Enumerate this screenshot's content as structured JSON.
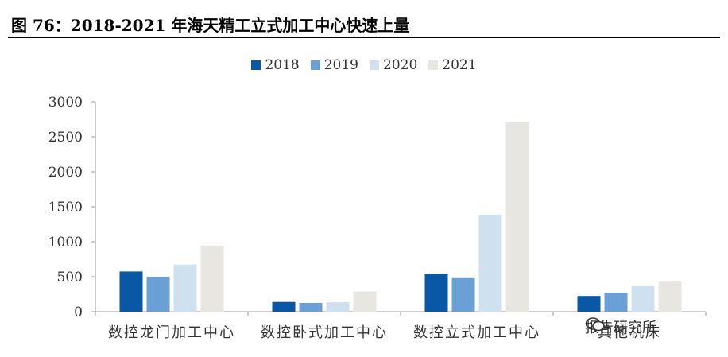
{
  "title": "图 76：2018-2021 年海天精工立式加工中心快速上量",
  "watermark": "报告研究所",
  "colors": {
    "2018": "#0a57a6",
    "2019": "#6aa0d6",
    "2020": "#cfe0ef",
    "2021": "#e8e6e1"
  },
  "chart_data": {
    "type": "bar",
    "categories": [
      "数控龙门加工中心",
      "数控卧式加工中心",
      "数控立式加工中心",
      "其他机床"
    ],
    "series": [
      {
        "name": "2018",
        "values": [
          575,
          140,
          540,
          225
        ]
      },
      {
        "name": "2019",
        "values": [
          495,
          125,
          480,
          270
        ]
      },
      {
        "name": "2020",
        "values": [
          675,
          135,
          1385,
          365
        ]
      },
      {
        "name": "2021",
        "values": [
          945,
          290,
          2715,
          430
        ]
      }
    ],
    "ylim": [
      0,
      3000
    ],
    "yticks": [
      "0",
      "500",
      "1000",
      "1500",
      "2000",
      "2500",
      "3000"
    ],
    "legend": "top-center",
    "grid": false
  }
}
